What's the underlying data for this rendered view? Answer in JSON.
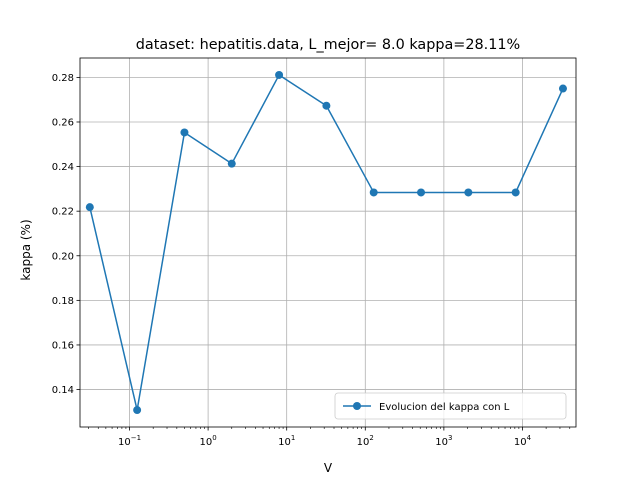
{
  "chart_data": {
    "type": "line",
    "title": "dataset: hepatitis.data, L_mejor= 8.0 kappa=28.11%",
    "xlabel": "V",
    "ylabel": "kappa (%)",
    "xscale": "log",
    "xlim": [
      0.0234375,
      48000
    ],
    "ylim": [
      0.1232,
      0.2887
    ],
    "xticks": [
      {
        "value": 0.1,
        "base": "10",
        "exp": "−1"
      },
      {
        "value": 1,
        "base": "10",
        "exp": "0"
      },
      {
        "value": 10,
        "base": "10",
        "exp": "1"
      },
      {
        "value": 100,
        "base": "10",
        "exp": "2"
      },
      {
        "value": 1000,
        "base": "10",
        "exp": "3"
      },
      {
        "value": 10000,
        "base": "10",
        "exp": "4"
      }
    ],
    "yticks": [
      {
        "value": 0.14,
        "label": "0.14"
      },
      {
        "value": 0.16,
        "label": "0.16"
      },
      {
        "value": 0.18,
        "label": "0.18"
      },
      {
        "value": 0.2,
        "label": "0.20"
      },
      {
        "value": 0.22,
        "label": "0.22"
      },
      {
        "value": 0.24,
        "label": "0.24"
      },
      {
        "value": 0.26,
        "label": "0.26"
      },
      {
        "value": 0.28,
        "label": "0.28"
      }
    ],
    "grid": true,
    "legend_position": "lower right",
    "series": [
      {
        "name": "Evolucion del kappa con L",
        "color": "#1f77b4",
        "marker": "circle",
        "x": [
          0.03125,
          0.125,
          0.5,
          2,
          8,
          32,
          128,
          512,
          2048,
          8192,
          32768
        ],
        "y": [
          0.2218,
          0.1308,
          0.2553,
          0.2413,
          0.2811,
          0.2673,
          0.2284,
          0.2284,
          0.2284,
          0.2284,
          0.275
        ]
      }
    ]
  }
}
